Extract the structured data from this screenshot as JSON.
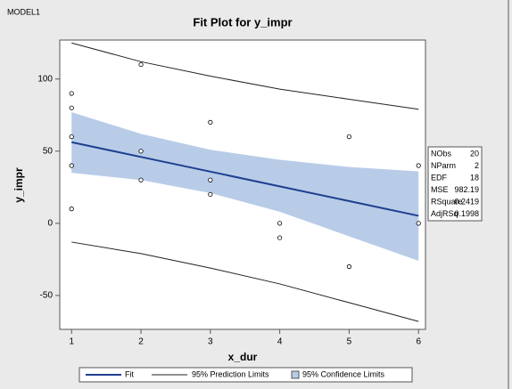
{
  "chart_data": {
    "type": "fit",
    "model": "MODEL1",
    "title": "Fit Plot for y_impr",
    "x_label": "x_dur",
    "y_label": "y_impr",
    "xlim": [
      0.83,
      6.1
    ],
    "ylim": [
      -73.5,
      127
    ],
    "xticks": [
      1,
      2,
      3,
      4,
      5,
      6
    ],
    "yticks": [
      -50,
      0,
      50,
      100
    ],
    "points": {
      "x": [
        1,
        1,
        1,
        1,
        1,
        2,
        2,
        2,
        3,
        3,
        3,
        4,
        4,
        5,
        5,
        6,
        6
      ],
      "y": [
        90,
        80,
        60,
        40,
        10,
        110,
        50,
        30,
        70,
        30,
        20,
        0,
        -10,
        60,
        -30,
        40,
        0
      ]
    },
    "curve_x": [
      1,
      2,
      3,
      4,
      5,
      6
    ],
    "fit": {
      "name": "Fit",
      "color": "#1f3f8f",
      "values": [
        56.2,
        46,
        35.8,
        25.6,
        15.4,
        5.2
      ]
    },
    "prediction": {
      "name": "95% Prediction Limits",
      "color": "#222222",
      "upper": [
        125,
        112,
        102,
        93,
        86,
        79
      ],
      "lower": [
        -13,
        -21,
        -31,
        -42,
        -55,
        -68
      ]
    },
    "confidence": {
      "name": "95% Confidence Limits",
      "color": "#b8cce8",
      "upper": [
        77,
        62,
        51,
        44,
        39,
        36
      ],
      "lower": [
        35,
        30,
        21,
        8,
        -9,
        -26
      ]
    },
    "stats": [
      {
        "label": "NObs",
        "value": 20
      },
      {
        "label": "NParm",
        "value": 2
      },
      {
        "label": "EDF",
        "value": 18
      },
      {
        "label": "MSE",
        "value": 982.19
      },
      {
        "label": "RSquare",
        "value": 0.2419
      },
      {
        "label": "AdjRSq",
        "value": 0.1998
      }
    ]
  }
}
